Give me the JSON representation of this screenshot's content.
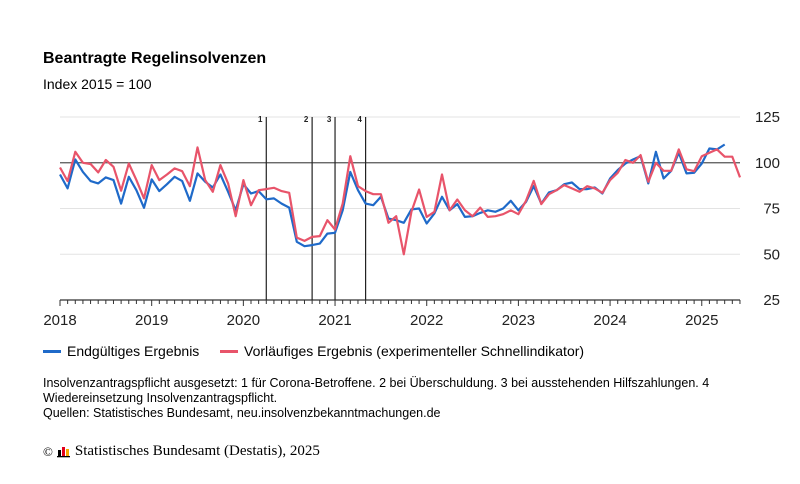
{
  "title": "Beantragte Regelinsolvenzen",
  "subtitle": "Index 2015 = 100",
  "legend": {
    "blue": "Endgültiges Ergebnis",
    "red": "Vorläufiges Ergebnis (experimenteller Schnellindikator)"
  },
  "notes": {
    "line1": "Insolvenzantragspflicht ausgesetzt: 1 für Corona-Betroffene. 2 bei Überschuldung. 3 bei ausstehenden Hilfszahlungen. 4",
    "line2": "Wiedereinsetzung Insolvenzantragspflicht.",
    "line3": "Quellen: Statistisches Bundesamt, neu.insolvenzbekanntmachungen.de"
  },
  "copyright": {
    "symbol": "©",
    "text": "Statistisches Bundesamt (Destatis), 2025"
  },
  "chart_data": {
    "type": "line",
    "title": "Beantragte Regelinsolvenzen",
    "ylabel": "Index 2015 = 100",
    "x_start": "2018-01",
    "xticks": [
      "2018",
      "2019",
      "2020",
      "2021",
      "2022",
      "2023",
      "2024",
      "2025"
    ],
    "yticks": [
      25,
      50,
      75,
      100,
      125
    ],
    "ylim": [
      25,
      125
    ],
    "reference_line": 100,
    "events": [
      {
        "label": "1",
        "month": "2020-04"
      },
      {
        "label": "2",
        "month": "2020-10"
      },
      {
        "label": "3",
        "month": "2021-01"
      },
      {
        "label": "4",
        "month": "2021-05"
      }
    ],
    "legend_position": "bottom",
    "series": [
      {
        "name": "Endgültiges Ergebnis",
        "color": "#1f6ac9",
        "values": [
          93.6,
          86,
          101.8,
          95,
          90,
          88.7,
          92,
          90.5,
          77.7,
          92.3,
          85,
          75.4,
          90.9,
          84.5,
          88.3,
          92.3,
          90,
          79.2,
          94.2,
          89.6,
          86.5,
          93.6,
          84.1,
          74,
          88.3,
          83.2,
          84.5,
          80,
          80.5,
          77.7,
          75.5,
          56.8,
          54.4,
          55,
          55.8,
          61.3,
          61.7,
          74,
          95,
          85,
          77.7,
          76.8,
          81.4,
          69.5,
          68.6,
          67.2,
          74.5,
          75,
          66.8,
          72.3,
          81.4,
          74,
          77.4,
          70.4,
          70.8,
          72.6,
          74,
          73.2,
          75,
          79.2,
          74,
          78.6,
          87.2,
          77.7,
          83.8,
          85,
          88.3,
          89.2,
          85.6,
          85.6,
          86.5,
          83.2,
          91.4,
          96,
          99.6,
          101.8,
          103.6,
          88.7,
          106,
          91.4,
          95.6,
          105.5,
          94.2,
          94.5,
          99.6,
          107.8,
          107.3,
          110
        ]
      },
      {
        "name": "Vorläufiges Ergebnis (experimenteller Schnellindikator)",
        "color": "#e8546a",
        "values": [
          97.4,
          90,
          106,
          100,
          99.3,
          94.7,
          101.5,
          97.8,
          84.7,
          99.6,
          90.5,
          80.5,
          98.7,
          90.5,
          93.6,
          96.9,
          95.4,
          87.2,
          108.4,
          90.5,
          84.1,
          98.7,
          88.7,
          70.8,
          90.5,
          76.8,
          85,
          85.6,
          86.3,
          84.5,
          83.6,
          59.1,
          57.3,
          59.5,
          59.9,
          68.6,
          63.5,
          77.7,
          103.6,
          87.2,
          84.5,
          82.8,
          82.8,
          67.2,
          70.8,
          50,
          73.2,
          85.4,
          70.4,
          73.2,
          93.6,
          74,
          79.9,
          74,
          70.8,
          75.5,
          70.4,
          70.8,
          71.9,
          74,
          71.9,
          79.2,
          90.1,
          77.4,
          82.8,
          85,
          87.8,
          86,
          84.1,
          87.2,
          86,
          83.6,
          90.5,
          94.5,
          101.5,
          100,
          104.2,
          89.6,
          100,
          95.6,
          95.6,
          107.3,
          96.4,
          95.4,
          103.6,
          105.5,
          107.3,
          103.3,
          103.3,
          92
        ]
      }
    ]
  }
}
